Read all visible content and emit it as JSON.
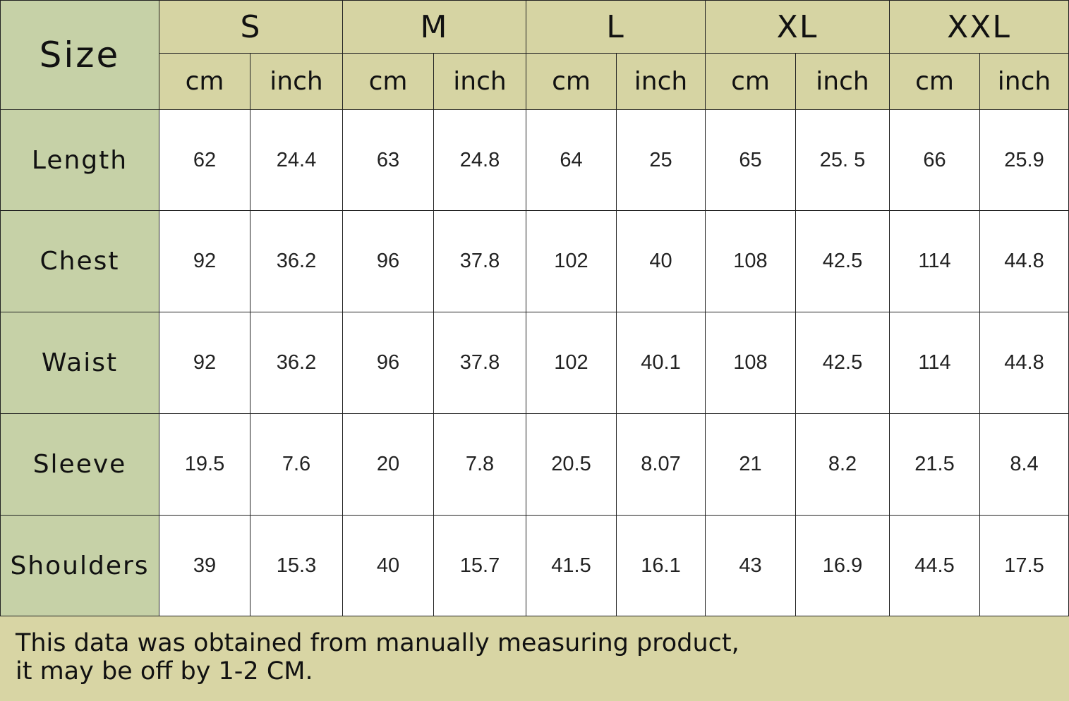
{
  "table": {
    "corner": "Size",
    "sizes": [
      {
        "name": "S",
        "units": [
          "cm",
          "inch"
        ]
      },
      {
        "name": "M",
        "units": [
          "cm",
          "inch"
        ]
      },
      {
        "name": "L",
        "units": [
          "cm",
          "inch"
        ]
      },
      {
        "name": "XL",
        "units": [
          "cm",
          "inch"
        ]
      },
      {
        "name": "XXL",
        "units": [
          "cm",
          "inch"
        ]
      }
    ],
    "rows": [
      {
        "label": "Length",
        "values": [
          "62",
          "24.4",
          "63",
          "24.8",
          "64",
          "25",
          "65",
          "25. 5",
          "66",
          "25.9"
        ]
      },
      {
        "label": "Chest",
        "values": [
          "92",
          "36.2",
          "96",
          "37.8",
          "102",
          "40",
          "108",
          "42.5",
          "114",
          "44.8"
        ]
      },
      {
        "label": "Waist",
        "values": [
          "92",
          "36.2",
          "96",
          "37.8",
          "102",
          "40.1",
          "108",
          "42.5",
          "114",
          "44.8"
        ]
      },
      {
        "label": "Sleeve",
        "values": [
          "19.5",
          "7.6",
          "20",
          "7.8",
          "20.5",
          "8.07",
          "21",
          "8.2",
          "21.5",
          "8.4"
        ]
      },
      {
        "label": "Shoulders",
        "values": [
          "39",
          "15.3",
          "40",
          "15.7",
          "41.5",
          "16.1",
          "43",
          "16.9",
          "44.5",
          "17.5"
        ]
      }
    ],
    "note": [
      "This data was obtained from manually measuring product,",
      "it may be off by 1-2 CM."
    ]
  }
}
